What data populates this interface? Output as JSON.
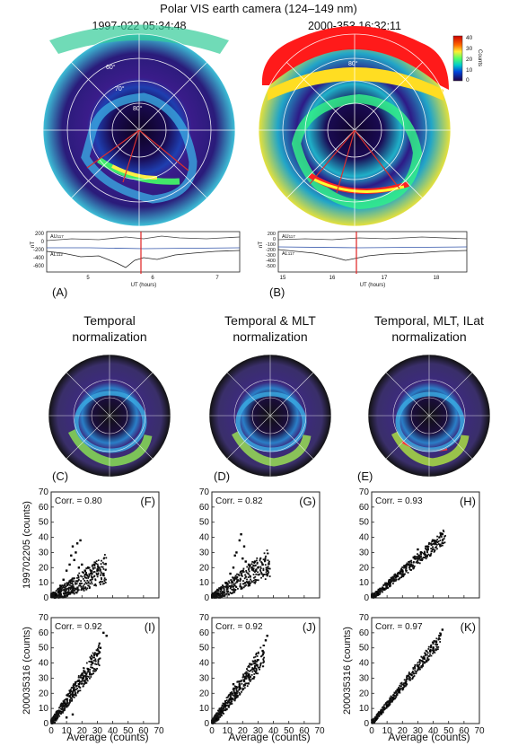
{
  "title": "Polar VIS earth camera (124–149 nm)",
  "panel_a": {
    "time_label": "1997-022 05:34:48",
    "lat_labels": [
      "80°",
      "70°",
      "60°"
    ],
    "letter": "(A)",
    "index_plot": {
      "ylabel": "nT",
      "xlabel": "UT (hours)",
      "x_ticks": [
        "5",
        "6",
        "7"
      ],
      "y_ticks": [
        "200",
        "0",
        "-200",
        "-400",
        "-600"
      ],
      "series_labels": [
        "AU",
        "AL"
      ],
      "au_value": "117",
      "al_value": "112"
    }
  },
  "panel_b": {
    "time_label": "2000-353 16:32:11",
    "lat_labels": [
      "80°"
    ],
    "letter": "(B)",
    "colorbar": {
      "label": "Counts",
      "ticks": [
        "40",
        "30",
        "20",
        "10",
        "0"
      ],
      "colors": [
        "#cc0000",
        "#ff3300",
        "#ffcc00",
        "#ffff33",
        "#66ff66",
        "#00cccc",
        "#0066ff",
        "#0000aa",
        "#330066",
        "#1a0033"
      ]
    },
    "index_plot": {
      "ylabel": "nT",
      "xlabel": "UT (hours)",
      "x_ticks": [
        "15",
        "16",
        "17",
        "18"
      ],
      "y_ticks": [
        "200",
        "0",
        "-100",
        "-200",
        "-300",
        "-400",
        "-500"
      ],
      "series_labels": [
        "AU",
        "AL"
      ],
      "au_value": "117",
      "al_value": "117"
    }
  },
  "normalizations": [
    {
      "title_line1": "Temporal",
      "title_line2": "normalization",
      "letter": "(C)"
    },
    {
      "title_line1": "Temporal & MLT",
      "title_line2": "normalization",
      "letter": "(D)"
    },
    {
      "title_line1": "Temporal, MLT, ILat",
      "title_line2": "normalization",
      "letter": "(E)"
    }
  ],
  "chart_data": [
    {
      "type": "scatter",
      "panel": "(F)",
      "annotation": "Corr. = 0.80",
      "ylabel": "199702205 (counts)",
      "xlim": [
        0,
        70
      ],
      "ylim": [
        0,
        70
      ],
      "x_ticks": [
        0,
        10,
        20,
        30,
        40,
        50,
        60,
        70
      ],
      "y_ticks": [
        0,
        10,
        20,
        30,
        40,
        50,
        60,
        70
      ],
      "slope": 0.55,
      "spread": 7,
      "xmax": 36,
      "points": [
        [
          3,
          2
        ],
        [
          5,
          4
        ],
        [
          6,
          8
        ],
        [
          8,
          12
        ],
        [
          10,
          18
        ],
        [
          12,
          22
        ],
        [
          14,
          34
        ],
        [
          16,
          30
        ],
        [
          18,
          20
        ],
        [
          20,
          22
        ],
        [
          22,
          18
        ],
        [
          24,
          20
        ],
        [
          26,
          16
        ],
        [
          28,
          22
        ],
        [
          30,
          18
        ],
        [
          34,
          16
        ],
        [
          15,
          25
        ],
        [
          13,
          28
        ],
        [
          17,
          36
        ],
        [
          19,
          38
        ]
      ]
    },
    {
      "type": "scatter",
      "panel": "(G)",
      "annotation": "Corr. = 0.82",
      "ylabel": "",
      "xlim": [
        0,
        70
      ],
      "ylim": [
        0,
        70
      ],
      "x_ticks": [
        0,
        10,
        20,
        30,
        40,
        50,
        60,
        70
      ],
      "y_ticks": [
        0,
        10,
        20,
        30,
        40,
        50,
        60,
        70
      ],
      "slope": 0.62,
      "spread": 7,
      "xmax": 38,
      "points": [
        [
          4,
          3
        ],
        [
          6,
          6
        ],
        [
          9,
          10
        ],
        [
          12,
          16
        ],
        [
          14,
          20
        ],
        [
          16,
          30
        ],
        [
          18,
          38
        ],
        [
          20,
          26
        ],
        [
          22,
          24
        ],
        [
          24,
          22
        ],
        [
          26,
          20
        ],
        [
          28,
          24
        ],
        [
          30,
          20
        ],
        [
          33,
          22
        ],
        [
          36,
          18
        ],
        [
          19,
          42
        ],
        [
          15,
          28
        ],
        [
          21,
          34
        ]
      ]
    },
    {
      "type": "scatter",
      "panel": "(H)",
      "annotation": "Corr. = 0.93",
      "ylabel": "",
      "xlim": [
        0,
        70
      ],
      "ylim": [
        0,
        70
      ],
      "x_ticks": [
        0,
        10,
        20,
        30,
        40,
        50,
        60,
        70
      ],
      "y_ticks": [
        0,
        10,
        20,
        30,
        40,
        50,
        60,
        70
      ],
      "slope": 0.85,
      "spread": 4,
      "xmax": 48,
      "points": [
        [
          4,
          3
        ],
        [
          8,
          6
        ],
        [
          12,
          10
        ],
        [
          16,
          14
        ],
        [
          20,
          18
        ],
        [
          24,
          22
        ],
        [
          28,
          26
        ],
        [
          32,
          30
        ],
        [
          36,
          34
        ],
        [
          40,
          38
        ],
        [
          44,
          40
        ],
        [
          46,
          42
        ],
        [
          30,
          32
        ],
        [
          38,
          28
        ]
      ]
    },
    {
      "type": "scatter",
      "panel": "(I)",
      "annotation": "Corr. = 0.92",
      "ylabel": "200035316 (counts)",
      "xlim": [
        0,
        70
      ],
      "ylim": [
        0,
        70
      ],
      "x_ticks": [
        0,
        10,
        20,
        30,
        40,
        50,
        60,
        70
      ],
      "y_ticks": [
        0,
        10,
        20,
        30,
        40,
        50,
        60,
        70
      ],
      "slope": 1.45,
      "spread": 6,
      "xmax": 32,
      "points": [
        [
          3,
          3
        ],
        [
          6,
          8
        ],
        [
          9,
          13
        ],
        [
          12,
          18
        ],
        [
          15,
          22
        ],
        [
          18,
          26
        ],
        [
          21,
          30
        ],
        [
          24,
          36
        ],
        [
          27,
          40
        ],
        [
          30,
          46
        ],
        [
          32,
          50
        ],
        [
          34,
          60
        ],
        [
          36,
          58
        ],
        [
          10,
          4
        ],
        [
          14,
          6
        ]
      ]
    },
    {
      "type": "scatter",
      "panel": "(J)",
      "annotation": "Corr. = 0.92",
      "ylabel": "",
      "xlim": [
        0,
        70
      ],
      "ylim": [
        0,
        70
      ],
      "x_ticks": [
        0,
        10,
        20,
        30,
        40,
        50,
        60,
        70
      ],
      "y_ticks": [
        0,
        10,
        20,
        30,
        40,
        50,
        60,
        70
      ],
      "slope": 1.35,
      "spread": 6,
      "xmax": 34,
      "points": [
        [
          3,
          3
        ],
        [
          6,
          8
        ],
        [
          9,
          12
        ],
        [
          12,
          16
        ],
        [
          15,
          20
        ],
        [
          18,
          24
        ],
        [
          21,
          28
        ],
        [
          24,
          32
        ],
        [
          27,
          36
        ],
        [
          30,
          42
        ],
        [
          33,
          48
        ],
        [
          35,
          55
        ],
        [
          36,
          58
        ],
        [
          14,
          26
        ]
      ]
    },
    {
      "type": "scatter",
      "panel": "(K)",
      "annotation": "Corr. = 0.97",
      "ylabel": "200035316 (counts)",
      "xlim": [
        0,
        70
      ],
      "ylim": [
        0,
        70
      ],
      "x_ticks": [
        0,
        10,
        20,
        30,
        40,
        50,
        60,
        70
      ],
      "y_ticks": [
        0,
        10,
        20,
        30,
        40,
        50,
        60,
        70
      ],
      "slope": 1.25,
      "spread": 3.5,
      "xmax": 45,
      "points": [
        [
          3,
          3
        ],
        [
          6,
          7
        ],
        [
          10,
          12
        ],
        [
          14,
          17
        ],
        [
          18,
          22
        ],
        [
          22,
          27
        ],
        [
          26,
          32
        ],
        [
          30,
          38
        ],
        [
          34,
          43
        ],
        [
          38,
          48
        ],
        [
          42,
          54
        ],
        [
          44,
          58
        ],
        [
          46,
          62
        ],
        [
          40,
          50
        ]
      ]
    }
  ],
  "shared_axes": {
    "xlabel": "Average (counts)"
  }
}
